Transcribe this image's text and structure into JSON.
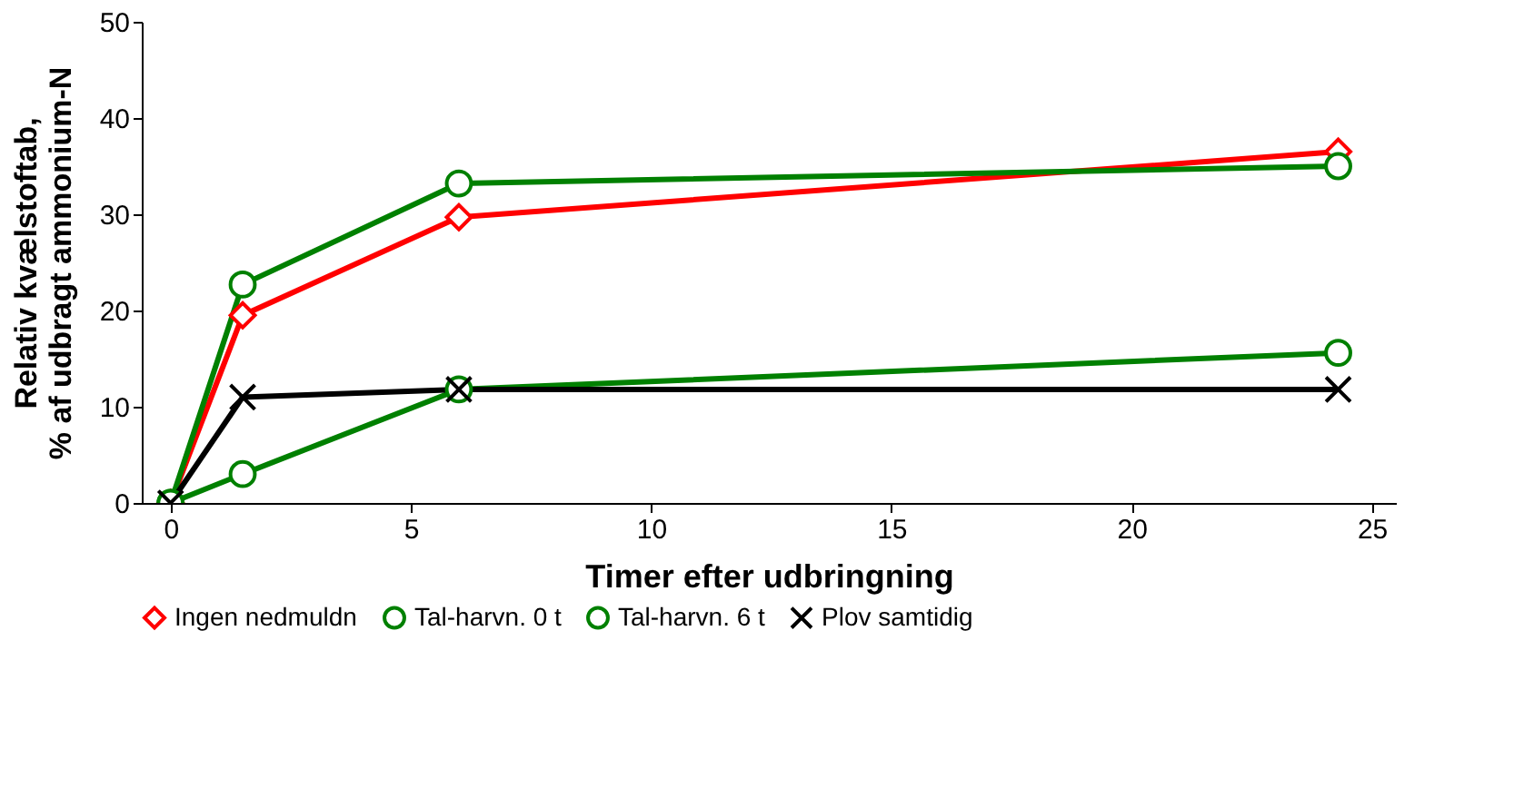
{
  "chart_data": {
    "type": "line",
    "xlabel": "Timer efter udbringning",
    "ylabel": "Relativ kvælstoftab,\n% af udbragt ammonium-N",
    "x": [
      0,
      1.5,
      6,
      24.3
    ],
    "series": [
      {
        "name": "Ingen nedmuldn",
        "color": "#ff0000",
        "marker": "diamond",
        "values": [
          0,
          19.5,
          29.7,
          36.5
        ]
      },
      {
        "name": "Tal-harvn. 0 t",
        "color": "#008000",
        "marker": "circle",
        "values": [
          0,
          3,
          11.8,
          15.6
        ]
      },
      {
        "name": "Tal-harvn. 6 t",
        "color": "#008000",
        "marker": "circle",
        "values": [
          0,
          22.7,
          33.2,
          35
        ]
      },
      {
        "name": "Plov samtidig",
        "color": "#000000",
        "marker": "cross",
        "values": [
          0,
          11,
          11.8,
          11.8
        ]
      }
    ],
    "xlim": [
      -0.6,
      25.5
    ],
    "xticks": [
      0,
      5,
      10,
      15,
      20,
      25
    ],
    "ylim": [
      0,
      50
    ],
    "yticks": [
      0,
      10,
      20,
      30,
      40,
      50
    ],
    "grid": false,
    "legend": "bottom",
    "line_style": "solid"
  }
}
